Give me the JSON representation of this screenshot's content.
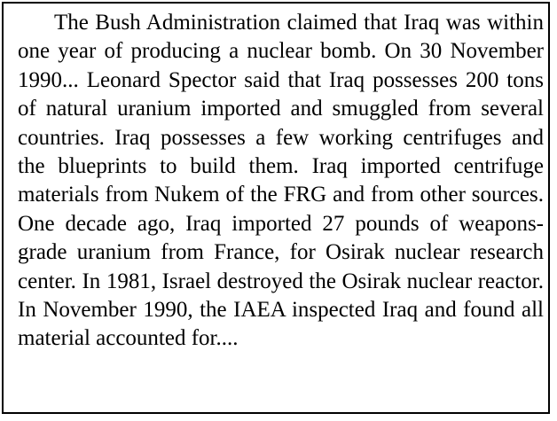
{
  "passage": {
    "text": "The Bush Administration claimed that Iraq was within one year of producing a nuclear bomb. On 30 November 1990... Leonard Spector said that Iraq possesses 200 tons of natural uranium imported and smuggled from several countries. Iraq possesses a few working centrifuges and the blueprints to build them. Iraq imported centrifuge materials from Nukem of the FRG and from other sources. One decade ago, Iraq imported 27 pounds of weapons-grade uranium from France, for Osirak nuclear research center. In 1981, Israel destroyed the Osirak nuclear reactor. In November 1990, the IAEA inspected Iraq and found all material accounted for...."
  }
}
